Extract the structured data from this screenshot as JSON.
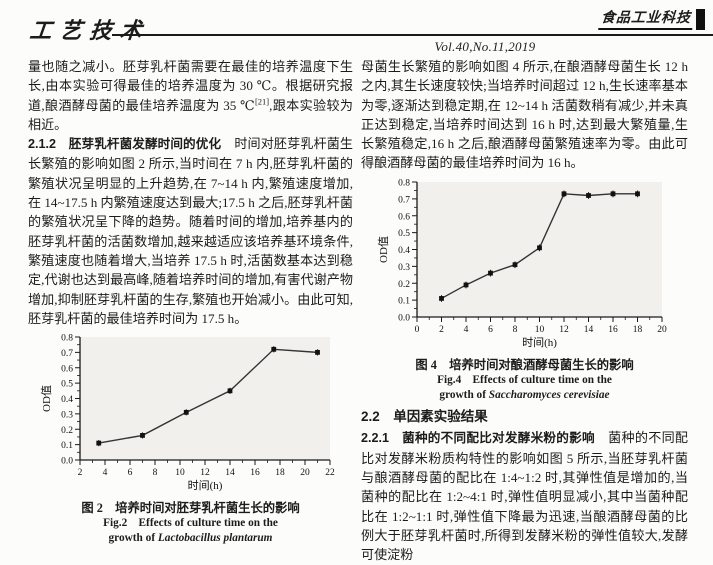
{
  "header": {
    "column_tag": "工艺技术",
    "journal_name": "食品工业科技",
    "volume": "Vol.40,No.11,2019"
  },
  "left_column": {
    "para1": {
      "before_sup": "量也随之减小。胚芽乳杆菌需要在最佳的培养温度下生长,由本实验可得最佳的培养温度为 30 ℃。根据研究报道,酿酒酵母菌的最佳培养温度为 35 ℃",
      "sup": "[21]",
      "after_sup": ",跟本实验较为相近。"
    },
    "para2_heading": "2.1.2　胚芽乳杆菌发酵时间的优化",
    "para2_text": "　时间对胚芽乳杆菌生长繁殖的影响如图 2 所示,当时间在 7 h 内,胚芽乳杆菌的繁殖状况呈明显的上升趋势,在 7~14 h 内,繁殖速度增加,在 14~17.5 h 内繁殖速度达到最大;17.5 h 之后,胚芽乳杆菌的繁殖状况呈下降的趋势。随着时间的增加,培养基内的胚芽乳杆菌的活菌数增加,越来越适应该培养基环境条件,繁殖速度也随着增大,当培养 17.5 h 时,活菌数基本达到稳定,代谢也达到最高峰,随着培养时间的增加,有害代谢产物增加,抑制胚芽乳杆菌的生存,繁殖也开始减小。由此可知,胚芽乳杆菌的最佳培养时间为 17.5 h。",
    "fig2_caption_zh": "图 2　培养时间对胚芽乳杆菌生长的影响",
    "fig2_caption_en1": "Fig.2　Effects of culture time on the",
    "fig2_caption_en2_prefix": "growth of ",
    "fig2_caption_en2_species": "Lactobacillus plantarum"
  },
  "right_column": {
    "para1": "母菌生长繁殖的影响如图 4 所示,在酿酒酵母菌生长 12 h 之内,其生长速度较快;当培养时间超过 12 h,生长速率基本为零,逐渐达到稳定期,在 12~14 h 活菌数稍有减少,并未真正达到稳定,当培养时间达到 16 h 时,达到最大繁殖量,生长繁殖稳定,16 h 之后,酿酒酵母菌繁殖速率为零。由此可得酿酒酵母菌的最佳培养时间为 16 h。",
    "fig4_caption_zh": "图 4　培养时间对酿酒酵母菌生长的影响",
    "fig4_caption_en1": "Fig.4　Effects of culture time on the",
    "fig4_caption_en2_prefix": "growth of ",
    "fig4_caption_en2_species": "Saccharomyces cerevisiae",
    "heading_2_2": "2.2　单因素实验结果",
    "para2_heading": "2.2.1　菌种的不同配比对发酵米粉的影响",
    "para2_text": "　菌种的不同配比对发酵米粉质构特性的影响如图 5 所示,当胚芽乳杆菌与酿酒酵母菌的配比在 1:4~1:2 时,其弹性值是增加的,当菌种的配比在 1:2~4:1 时,弹性值明显减小,其中当菌种配比在 1:2~1:1 时,弹性值下降最为迅速,当酿酒酵母菌的比例大于胚芽乳杆菌时,所得到发酵米粉的弹性值较大,发酵可使淀粉"
  },
  "chart_data": [
    {
      "figure": "Fig.2",
      "type": "line",
      "title_zh": "图 2　培养时间对胚芽乳杆菌生长的影响",
      "title_en": "Fig.2 Effects of culture time on the growth of Lactobacillus plantarum",
      "x": [
        3.5,
        7,
        10.5,
        14,
        17.5,
        21
      ],
      "y": [
        0.11,
        0.16,
        0.31,
        0.45,
        0.72,
        0.7
      ],
      "yerr": 0.02,
      "xlabel": "时间(h)",
      "ylabel": "OD值",
      "xlim": [
        2,
        22
      ],
      "ylim": [
        0,
        0.8
      ],
      "xticks": [
        2,
        4,
        6,
        8,
        10,
        12,
        14,
        16,
        18,
        20,
        22
      ],
      "yticks": [
        0,
        0.1,
        0.2,
        0.3,
        0.4,
        0.5,
        0.6,
        0.7,
        0.8
      ],
      "marker": "square",
      "line_color": "#333333",
      "plot_bg": "#f2f0ec",
      "grid": false,
      "legend": "none"
    },
    {
      "figure": "Fig.4",
      "type": "line",
      "title_zh": "图 4　培养时间对酿酒酵母菌生长的影响",
      "title_en": "Fig.4 Effects of culture time on the growth of Saccharomyces cerevisiae",
      "x": [
        2,
        4,
        6,
        8,
        10,
        12,
        14,
        16,
        18
      ],
      "y": [
        0.11,
        0.19,
        0.26,
        0.31,
        0.41,
        0.73,
        0.72,
        0.73,
        0.73
      ],
      "yerr": 0.02,
      "xlabel": "时间(h)",
      "ylabel": "OD值",
      "xlim": [
        0,
        20
      ],
      "ylim": [
        0,
        0.8
      ],
      "xticks": [
        0,
        2,
        4,
        6,
        8,
        10,
        12,
        14,
        16,
        18,
        20
      ],
      "yticks": [
        0,
        0.1,
        0.2,
        0.3,
        0.4,
        0.5,
        0.6,
        0.7,
        0.8
      ],
      "marker": "square",
      "line_color": "#333333",
      "plot_bg": "#f2f0ec",
      "grid": false,
      "legend": "none"
    }
  ]
}
